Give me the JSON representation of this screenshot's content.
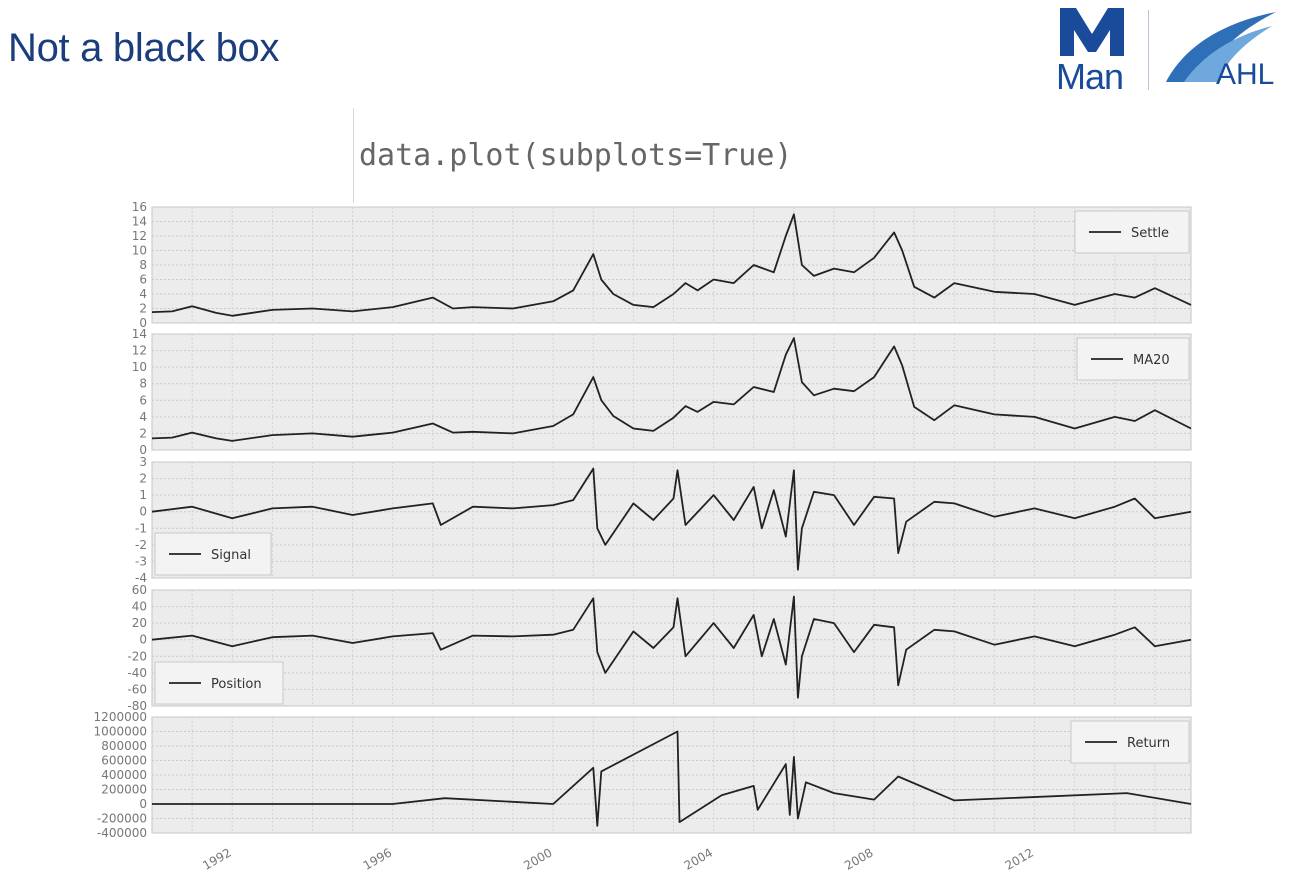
{
  "slide": {
    "title": "Not a black box",
    "code": "data.plot(subplots=True)",
    "logo": {
      "man": "Man",
      "ahl": "AHL",
      "brand_color": "#1a4b9b"
    }
  },
  "chart_data": [
    {
      "type": "line",
      "name": "Settle",
      "legend": "Settle",
      "legend_loc": "upper right",
      "x_range": [
        1990.0,
        2015.9
      ],
      "ylim": [
        0,
        16
      ],
      "yticks": [
        0,
        2,
        4,
        6,
        8,
        10,
        12,
        14,
        16
      ],
      "grid": true,
      "series": [
        {
          "name": "Settle",
          "x": [
            1990.0,
            1990.5,
            1991.0,
            1991.6,
            1992.0,
            1993.0,
            1994.0,
            1995.0,
            1996.0,
            1997.0,
            1997.5,
            1998.0,
            1999.0,
            2000.0,
            2000.5,
            2001.0,
            2001.2,
            2001.5,
            2002.0,
            2002.5,
            2003.0,
            2003.3,
            2003.6,
            2004.0,
            2004.5,
            2005.0,
            2005.5,
            2005.8,
            2006.0,
            2006.2,
            2006.5,
            2007.0,
            2007.5,
            2008.0,
            2008.5,
            2008.7,
            2009.0,
            2009.5,
            2010.0,
            2011.0,
            2012.0,
            2013.0,
            2014.0,
            2014.5,
            2015.0,
            2015.9
          ],
          "values": [
            1.5,
            1.6,
            2.3,
            1.4,
            1.0,
            1.8,
            2.0,
            1.6,
            2.2,
            3.5,
            2.0,
            2.2,
            2.0,
            3.0,
            4.5,
            9.5,
            6.0,
            4.0,
            2.5,
            2.2,
            4.0,
            5.5,
            4.5,
            6.0,
            5.5,
            8.0,
            7.0,
            12.0,
            15.0,
            8.0,
            6.5,
            7.5,
            7.0,
            9.0,
            12.5,
            10.0,
            5.0,
            3.5,
            5.5,
            4.3,
            4.0,
            2.5,
            4.0,
            3.5,
            4.8,
            2.5
          ]
        }
      ]
    },
    {
      "type": "line",
      "name": "MA20",
      "legend": "MA20",
      "legend_loc": "upper right",
      "x_range": [
        1990.0,
        2015.9
      ],
      "ylim": [
        0,
        14
      ],
      "yticks": [
        0,
        2,
        4,
        6,
        8,
        10,
        12,
        14
      ],
      "grid": true,
      "series": [
        {
          "name": "MA20",
          "x": [
            1990.0,
            1990.5,
            1991.0,
            1991.6,
            1992.0,
            1993.0,
            1994.0,
            1995.0,
            1996.0,
            1997.0,
            1997.5,
            1998.0,
            1999.0,
            2000.0,
            2000.5,
            2001.0,
            2001.2,
            2001.5,
            2002.0,
            2002.5,
            2003.0,
            2003.3,
            2003.6,
            2004.0,
            2004.5,
            2005.0,
            2005.5,
            2005.8,
            2006.0,
            2006.2,
            2006.5,
            2007.0,
            2007.5,
            2008.0,
            2008.5,
            2008.7,
            2009.0,
            2009.5,
            2010.0,
            2011.0,
            2012.0,
            2013.0,
            2014.0,
            2014.5,
            2015.0,
            2015.9
          ],
          "values": [
            1.4,
            1.5,
            2.1,
            1.4,
            1.1,
            1.8,
            2.0,
            1.6,
            2.1,
            3.2,
            2.1,
            2.2,
            2.0,
            2.9,
            4.3,
            8.8,
            6.0,
            4.1,
            2.6,
            2.3,
            3.9,
            5.3,
            4.6,
            5.8,
            5.5,
            7.6,
            7.0,
            11.5,
            13.5,
            8.2,
            6.6,
            7.4,
            7.1,
            8.8,
            12.5,
            10.2,
            5.2,
            3.6,
            5.4,
            4.3,
            4.0,
            2.6,
            4.0,
            3.5,
            4.8,
            2.6
          ]
        }
      ]
    },
    {
      "type": "line",
      "name": "Signal",
      "legend": "Signal",
      "legend_loc": "lower left",
      "x_range": [
        1990.0,
        2015.9
      ],
      "ylim": [
        -4,
        3
      ],
      "yticks": [
        -4,
        -3,
        -2,
        -1,
        0,
        1,
        2,
        3
      ],
      "grid": true,
      "series": [
        {
          "name": "Signal",
          "x": [
            1990.0,
            1991.0,
            1992.0,
            1993.0,
            1994.0,
            1995.0,
            1996.0,
            1997.0,
            1997.2,
            1998.0,
            1999.0,
            2000.0,
            2000.5,
            2001.0,
            2001.1,
            2001.3,
            2002.0,
            2002.5,
            2003.0,
            2003.1,
            2003.3,
            2004.0,
            2004.5,
            2005.0,
            2005.2,
            2005.5,
            2005.8,
            2006.0,
            2006.1,
            2006.2,
            2006.5,
            2007.0,
            2007.5,
            2008.0,
            2008.5,
            2008.6,
            2008.8,
            2009.5,
            2010.0,
            2011.0,
            2012.0,
            2013.0,
            2014.0,
            2014.5,
            2015.0,
            2015.9
          ],
          "values": [
            0.0,
            0.3,
            -0.4,
            0.2,
            0.3,
            -0.2,
            0.2,
            0.5,
            -0.8,
            0.3,
            0.2,
            0.4,
            0.7,
            2.6,
            -1.0,
            -2.0,
            0.5,
            -0.5,
            0.8,
            2.5,
            -0.8,
            1.0,
            -0.5,
            1.5,
            -1.0,
            1.3,
            -1.5,
            2.5,
            -3.5,
            -1.0,
            1.2,
            1.0,
            -0.8,
            0.9,
            0.8,
            -2.5,
            -0.6,
            0.6,
            0.5,
            -0.3,
            0.2,
            -0.4,
            0.3,
            0.8,
            -0.4,
            0.0
          ]
        }
      ]
    },
    {
      "type": "line",
      "name": "Position",
      "legend": "Position",
      "legend_loc": "lower left",
      "x_range": [
        1990.0,
        2015.9
      ],
      "ylim": [
        -80,
        60
      ],
      "yticks": [
        -80,
        -60,
        -40,
        -20,
        0,
        20,
        40,
        60
      ],
      "grid": true,
      "series": [
        {
          "name": "Position",
          "x": [
            1990.0,
            1991.0,
            1992.0,
            1993.0,
            1994.0,
            1995.0,
            1996.0,
            1997.0,
            1997.2,
            1998.0,
            1999.0,
            2000.0,
            2000.5,
            2001.0,
            2001.1,
            2001.3,
            2002.0,
            2002.5,
            2003.0,
            2003.1,
            2003.3,
            2004.0,
            2004.5,
            2005.0,
            2005.2,
            2005.5,
            2005.8,
            2006.0,
            2006.1,
            2006.2,
            2006.5,
            2007.0,
            2007.5,
            2008.0,
            2008.5,
            2008.6,
            2008.8,
            2009.5,
            2010.0,
            2011.0,
            2012.0,
            2013.0,
            2014.0,
            2014.5,
            2015.0,
            2015.9
          ],
          "values": [
            0,
            5,
            -8,
            3,
            5,
            -4,
            4,
            8,
            -12,
            5,
            4,
            6,
            12,
            50,
            -15,
            -40,
            10,
            -10,
            15,
            50,
            -20,
            20,
            -10,
            30,
            -20,
            25,
            -30,
            52,
            -70,
            -20,
            25,
            20,
            -15,
            18,
            15,
            -55,
            -12,
            12,
            10,
            -6,
            4,
            -8,
            6,
            15,
            -8,
            0
          ]
        }
      ]
    },
    {
      "type": "line",
      "name": "Return",
      "legend": "Return",
      "legend_loc": "upper right",
      "x_range": [
        1990.0,
        2015.9
      ],
      "ylim": [
        -400000,
        1200000
      ],
      "yticks": [
        -400000,
        -200000,
        0,
        200000,
        400000,
        600000,
        800000,
        1000000,
        1200000
      ],
      "grid": true,
      "series": [
        {
          "name": "Return",
          "x": [
            1990.0,
            1996.0,
            1997.3,
            2000.0,
            2001.0,
            2001.1,
            2001.2,
            2003.1,
            2003.15,
            2004.2,
            2005.0,
            2005.1,
            2005.8,
            2005.9,
            2006.0,
            2006.1,
            2006.3,
            2007.0,
            2008.0,
            2008.6,
            2010.0,
            2014.3,
            2015.9
          ],
          "values": [
            0,
            0,
            80000,
            0,
            500000,
            -300000,
            450000,
            1000000,
            -250000,
            120000,
            250000,
            -80000,
            550000,
            -150000,
            650000,
            -200000,
            300000,
            150000,
            60000,
            380000,
            50000,
            150000,
            0
          ]
        }
      ]
    }
  ],
  "x_axis": {
    "ticks": [
      "1992",
      "1996",
      "2000",
      "2004",
      "2008",
      "2012"
    ]
  }
}
